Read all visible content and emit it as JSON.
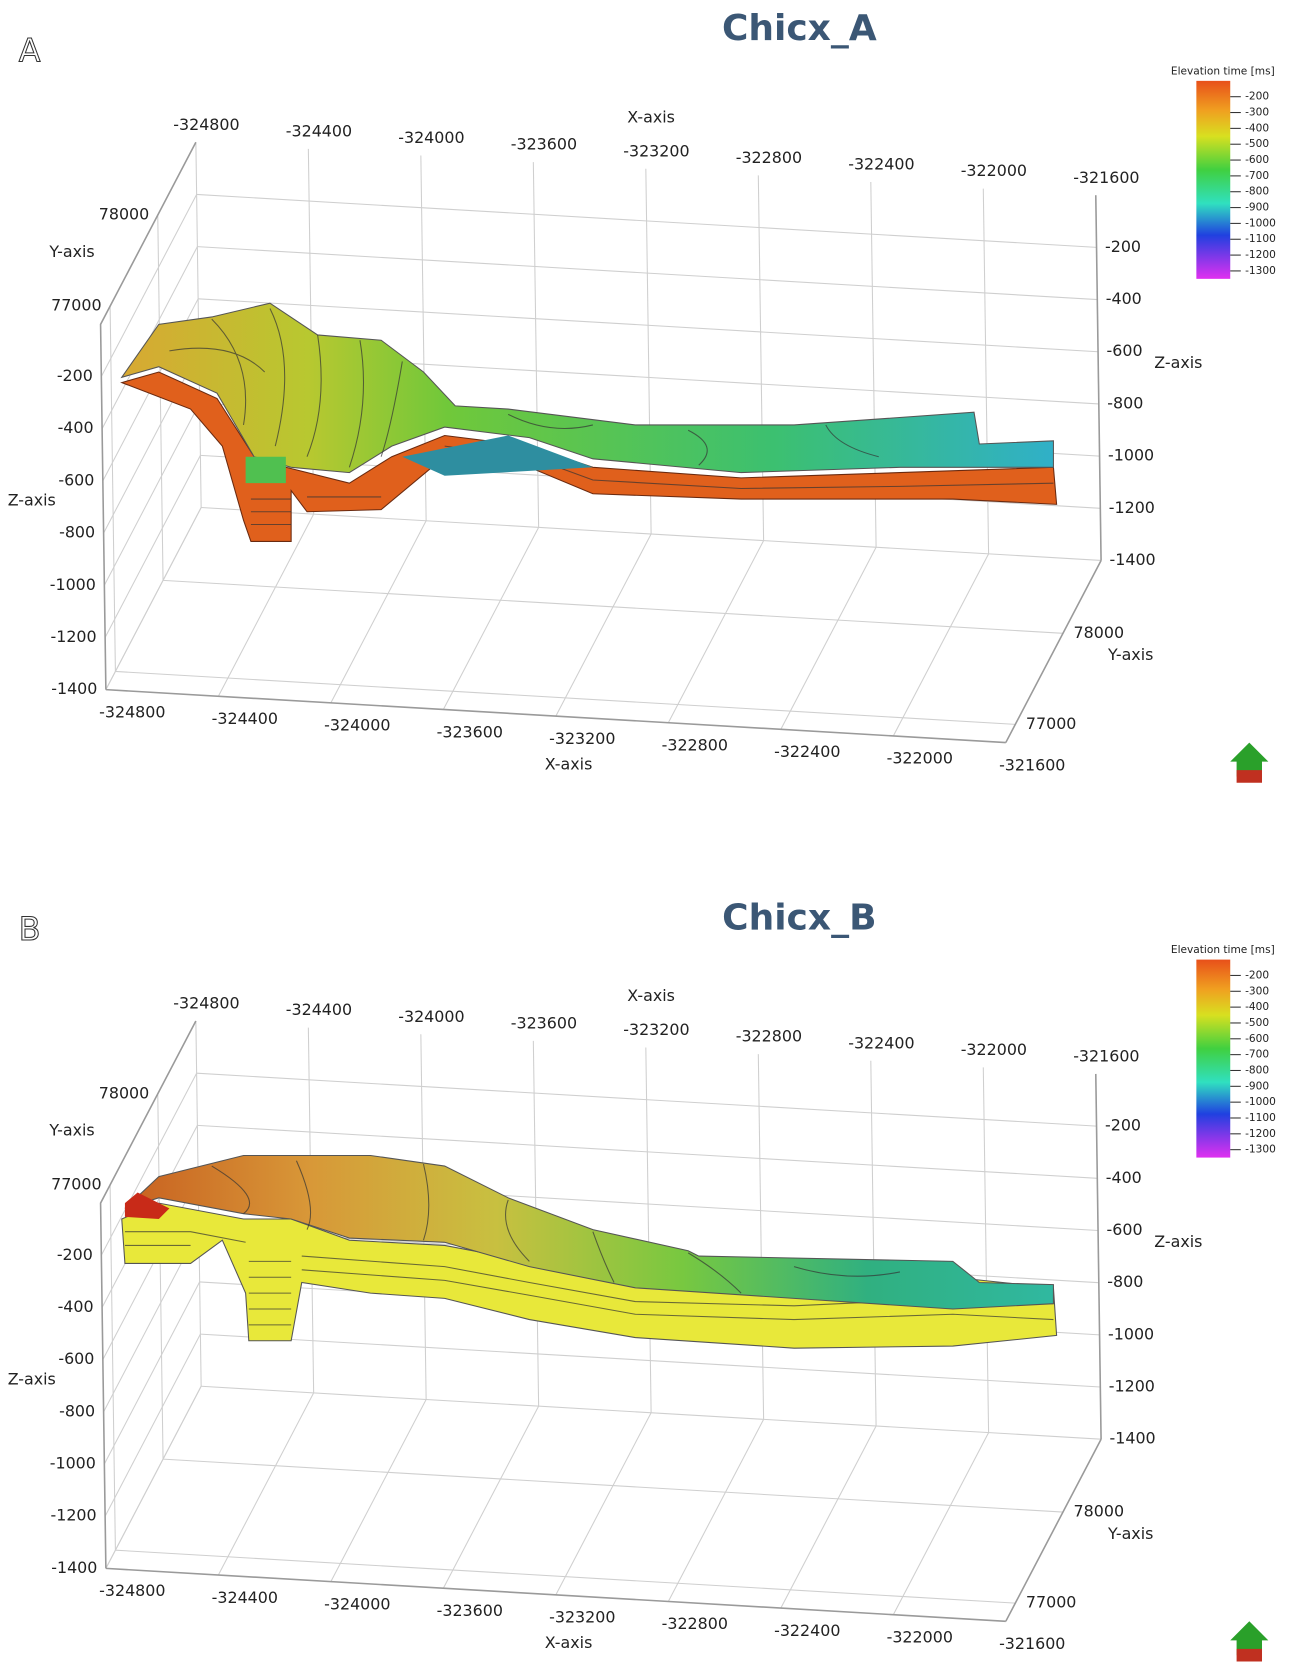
{
  "chart_data": [
    {
      "type": "surface3d",
      "panel_label": "A",
      "title": "Chicx_A",
      "xlabel": "X-axis",
      "ylabel": "Y-axis",
      "zlabel": "Z-axis",
      "xlim": [
        -324800,
        -321600
      ],
      "xticks": [
        -324800,
        -324400,
        -324000,
        -323600,
        -323200,
        -322800,
        -322400,
        -322000,
        -321600
      ],
      "ylim": [
        76800,
        78800
      ],
      "yticks": [
        77000,
        78000
      ],
      "zlim": [
        -1400,
        0
      ],
      "zticks": [
        -200,
        -400,
        -600,
        -800,
        -1000,
        -1200,
        -1400
      ],
      "colorbar_label": "Elevation time [ms]",
      "clim": [
        -100,
        -1350
      ],
      "cticks": [
        -200,
        -300,
        -400,
        -500,
        -600,
        -700,
        -800,
        -900,
        -1000,
        -1100,
        -1200,
        -1300
      ]
    },
    {
      "type": "surface3d",
      "panel_label": "B",
      "title": "Chicx_B",
      "xlabel": "X-axis",
      "ylabel": "Y-axis",
      "zlabel": "Z-axis",
      "xlim": [
        -324800,
        -321600
      ],
      "xticks": [
        -324800,
        -324400,
        -324000,
        -323600,
        -323200,
        -322800,
        -322400,
        -322000,
        -321600
      ],
      "ylim": [
        76800,
        78800
      ],
      "yticks": [
        77000,
        78000
      ],
      "zlim": [
        -1400,
        0
      ],
      "zticks": [
        -200,
        -400,
        -600,
        -800,
        -1000,
        -1200,
        -1400
      ],
      "colorbar_label": "Elevation time [ms]",
      "clim": [
        -100,
        -1350
      ],
      "cticks": [
        -200,
        -300,
        -400,
        -500,
        -600,
        -700,
        -800,
        -900,
        -1000,
        -1100,
        -1200,
        -1300
      ]
    }
  ]
}
